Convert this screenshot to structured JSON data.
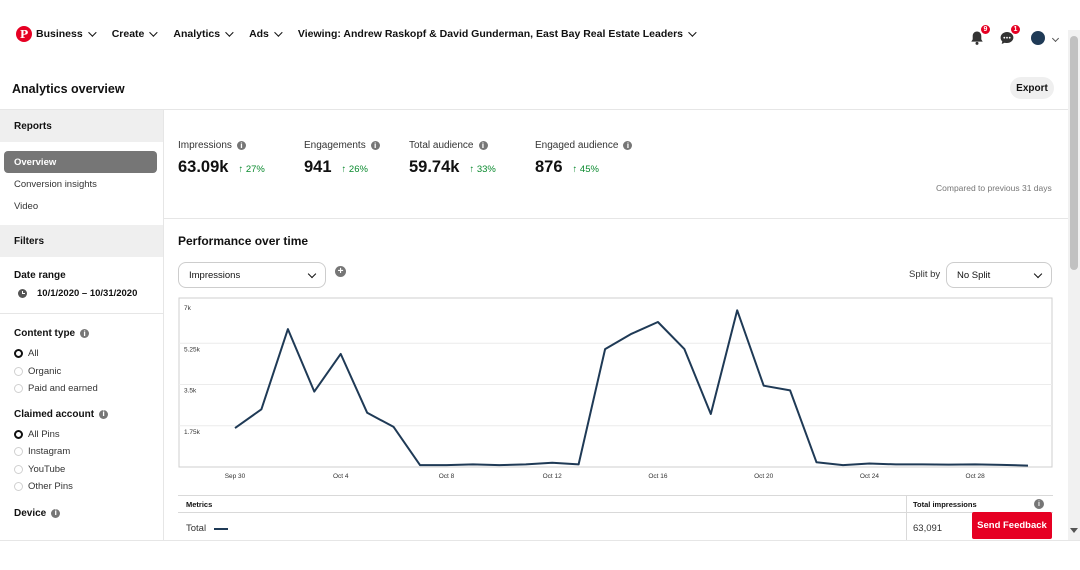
{
  "nav": {
    "logo": "P",
    "business": "Business",
    "create": "Create",
    "analytics": "Analytics",
    "ads": "Ads",
    "viewing": "Viewing: Andrew Raskopf & David Gunderman, East Bay Real Estate Leaders",
    "notifications_count": "9",
    "messages_count": "1",
    "icons": [
      "bell-icon",
      "messages-icon",
      "avatar",
      "chevron-down-icon"
    ]
  },
  "page": {
    "title": "Analytics overview",
    "export_label": "Export"
  },
  "sidebar": {
    "reports_label": "Reports",
    "links": [
      "Overview",
      "Conversion insights",
      "Video"
    ],
    "filters_label": "Filters",
    "date_range_label": "Date range",
    "date_range_value": "10/1/2020 – 10/31/2020",
    "content_type_label": "Content type",
    "content_type_options": [
      "All",
      "Organic",
      "Paid and earned"
    ],
    "content_type_selected": "All",
    "claimed_account_label": "Claimed account",
    "claimed_account_options": [
      "All Pins",
      "Instagram",
      "YouTube",
      "Other Pins"
    ],
    "claimed_account_selected": "All Pins",
    "device_label": "Device"
  },
  "metrics": [
    {
      "label": "Impressions",
      "value": "63.09k",
      "change": "27%"
    },
    {
      "label": "Engagements",
      "value": "941",
      "change": "26%"
    },
    {
      "label": "Total audience",
      "value": "59.74k",
      "change": "33%"
    },
    {
      "label": "Engaged audience",
      "value": "876",
      "change": "45%"
    }
  ],
  "compared_text": "Compared to previous 31 days",
  "performance": {
    "title": "Performance over time",
    "metric_select": "Impressions",
    "split_by_label": "Split by",
    "split_select": "No Split"
  },
  "chart_data": {
    "type": "line",
    "series": [
      {
        "values": [
          1650,
          2450,
          5850,
          3200,
          4800,
          2300,
          1700,
          80,
          80,
          110,
          80,
          110,
          180,
          110,
          5000,
          5650,
          6150,
          5000,
          2250,
          6650,
          3450,
          3250,
          200,
          80,
          150,
          110,
          110,
          100,
          110,
          90,
          60
        ]
      }
    ],
    "x": [
      "Sep 30",
      "Oct 1",
      "Oct 2",
      "Oct 3",
      "Oct 4",
      "Oct 5",
      "Oct 6",
      "Oct 7",
      "Oct 8",
      "Oct 9",
      "Oct 10",
      "Oct 11",
      "Oct 12",
      "Oct 13",
      "Oct 14",
      "Oct 15",
      "Oct 16",
      "Oct 17",
      "Oct 18",
      "Oct 19",
      "Oct 20",
      "Oct 21",
      "Oct 22",
      "Oct 23",
      "Oct 24",
      "Oct 25",
      "Oct 26",
      "Oct 27",
      "Oct 28",
      "Oct 29",
      "Oct 30"
    ],
    "x_tick_labels": [
      "Sep 30",
      "Oct 4",
      "Oct 8",
      "Oct 12",
      "Oct 16",
      "Oct 20",
      "Oct 24",
      "Oct 28"
    ],
    "y_tick_labels": [
      "7k",
      "5.25k",
      "3.5k",
      "1.75k"
    ],
    "ylim": [
      0,
      7000
    ],
    "grid": true,
    "color": "#1f3a56"
  },
  "table": {
    "col_metrics": "Metrics",
    "col_total": "Total impressions",
    "row_label": "Total",
    "row_value": "63,091"
  },
  "feedback_label": "Send Feedback",
  "colors": {
    "brand": "#e60023",
    "positive": "#0a8a2e",
    "line": "#1f3a56"
  }
}
